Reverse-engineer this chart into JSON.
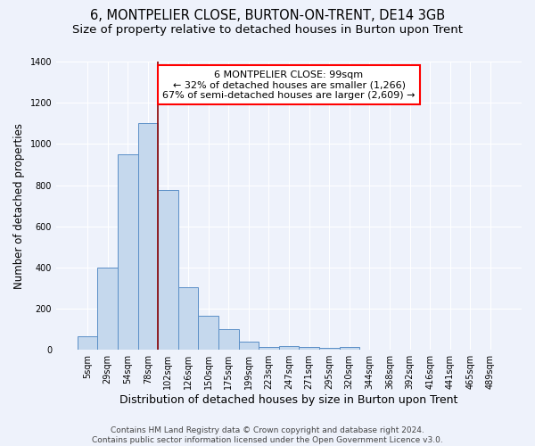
{
  "title": "6, MONTPELIER CLOSE, BURTON-ON-TRENT, DE14 3GB",
  "subtitle": "Size of property relative to detached houses in Burton upon Trent",
  "xlabel": "Distribution of detached houses by size in Burton upon Trent",
  "ylabel": "Number of detached properties",
  "categories": [
    "5sqm",
    "29sqm",
    "54sqm",
    "78sqm",
    "102sqm",
    "126sqm",
    "150sqm",
    "175sqm",
    "199sqm",
    "223sqm",
    "247sqm",
    "271sqm",
    "295sqm",
    "320sqm",
    "344sqm",
    "368sqm",
    "392sqm",
    "416sqm",
    "441sqm",
    "465sqm",
    "489sqm"
  ],
  "values": [
    65,
    400,
    950,
    1100,
    775,
    305,
    165,
    100,
    40,
    15,
    20,
    15,
    10,
    15,
    0,
    0,
    0,
    0,
    0,
    0,
    0
  ],
  "bar_color": "#c5d8ed",
  "bar_edge_color": "#5b8fc7",
  "vline_x_index": 4,
  "vline_color": "#8b0000",
  "annotation_line1": "6 MONTPELIER CLOSE: 99sqm",
  "annotation_line2": "← 32% of detached houses are smaller (1,266)",
  "annotation_line3": "67% of semi-detached houses are larger (2,609) →",
  "annotation_box_color": "white",
  "annotation_box_edge": "red",
  "bg_color": "#eef2fb",
  "grid_color": "white",
  "footnote": "Contains HM Land Registry data © Crown copyright and database right 2024.\nContains public sector information licensed under the Open Government Licence v3.0.",
  "ylim": [
    0,
    1400
  ],
  "title_fontsize": 10.5,
  "subtitle_fontsize": 9.5,
  "xlabel_fontsize": 9,
  "ylabel_fontsize": 8.5,
  "tick_fontsize": 7,
  "annotation_fontsize": 8,
  "footnote_fontsize": 6.5
}
